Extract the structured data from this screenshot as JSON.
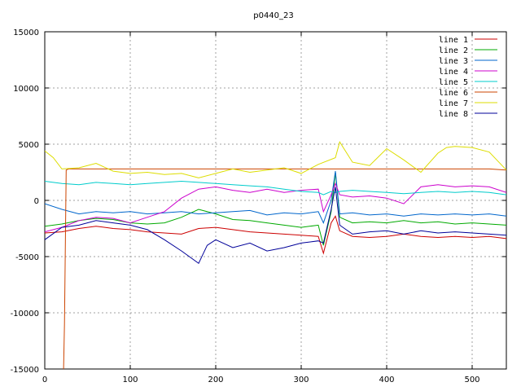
{
  "chart_data": {
    "type": "line",
    "title": "p0440_23",
    "xlabel": "",
    "ylabel": "",
    "xlim": [
      0,
      540
    ],
    "ylim": [
      -15000,
      15000
    ],
    "x_ticks": [
      0,
      100,
      200,
      300,
      400,
      500
    ],
    "y_ticks": [
      -15000,
      -10000,
      -5000,
      0,
      5000,
      10000,
      15000
    ],
    "grid": true,
    "legend_position": "top-right",
    "series": [
      {
        "name": "line 1",
        "color": "#cc0000",
        "x": [
          0,
          20,
          40,
          60,
          80,
          100,
          120,
          140,
          160,
          180,
          200,
          220,
          240,
          260,
          280,
          300,
          320,
          326,
          335,
          340,
          345,
          360,
          380,
          400,
          420,
          440,
          460,
          480,
          500,
          520,
          540
        ],
        "y": [
          -2900,
          -2800,
          -2500,
          -2300,
          -2500,
          -2600,
          -2800,
          -2900,
          -3000,
          -2500,
          -2400,
          -2600,
          -2800,
          -2900,
          -3000,
          -3100,
          -3200,
          -4700,
          -2000,
          -1400,
          -2700,
          -3200,
          -3300,
          -3200,
          -3000,
          -3200,
          -3300,
          -3200,
          -3300,
          -3200,
          -3400
        ]
      },
      {
        "name": "line 2",
        "color": "#00aa00",
        "x": [
          0,
          20,
          40,
          60,
          80,
          100,
          120,
          140,
          160,
          180,
          200,
          220,
          240,
          260,
          280,
          300,
          320,
          326,
          335,
          340,
          345,
          360,
          380,
          400,
          420,
          440,
          460,
          480,
          500,
          520,
          540
        ],
        "y": [
          -2300,
          -2100,
          -1800,
          -1600,
          -1700,
          -2000,
          -2100,
          -2000,
          -1500,
          -800,
          -1200,
          -1700,
          -1800,
          -2000,
          -2200,
          -2400,
          -2200,
          -4000,
          -1000,
          2500,
          -1500,
          -2000,
          -1900,
          -2000,
          -1800,
          -2000,
          -1900,
          -2100,
          -2000,
          -2100,
          -2200
        ]
      },
      {
        "name": "line 3",
        "color": "#0066cc",
        "x": [
          0,
          20,
          40,
          60,
          80,
          100,
          120,
          140,
          160,
          180,
          200,
          220,
          240,
          260,
          280,
          300,
          320,
          326,
          335,
          340,
          345,
          360,
          380,
          400,
          420,
          440,
          460,
          480,
          500,
          520,
          540
        ],
        "y": [
          -300,
          -800,
          -1200,
          -1000,
          -1100,
          -1000,
          -1200,
          -1100,
          -1000,
          -1200,
          -1100,
          -1000,
          -900,
          -1300,
          -1100,
          -1200,
          -1000,
          -2000,
          0,
          2600,
          -1200,
          -1100,
          -1300,
          -1200,
          -1400,
          -1200,
          -1300,
          -1200,
          -1300,
          -1200,
          -1400
        ]
      },
      {
        "name": "line 4",
        "color": "#cc00cc",
        "x": [
          0,
          20,
          40,
          60,
          80,
          100,
          120,
          140,
          160,
          180,
          200,
          220,
          240,
          260,
          280,
          300,
          320,
          326,
          335,
          340,
          345,
          360,
          380,
          400,
          420,
          440,
          460,
          480,
          500,
          520,
          540
        ],
        "y": [
          -2800,
          -2400,
          -1800,
          -1500,
          -1600,
          -2000,
          -1500,
          -1000,
          200,
          1000,
          1200,
          900,
          700,
          1000,
          700,
          900,
          1000,
          -1000,
          500,
          1500,
          500,
          300,
          400,
          200,
          -300,
          1200,
          1400,
          1200,
          1300,
          1200,
          700
        ]
      },
      {
        "name": "line 5",
        "color": "#00cccc",
        "x": [
          0,
          20,
          40,
          60,
          80,
          100,
          120,
          140,
          160,
          180,
          200,
          220,
          240,
          260,
          280,
          300,
          320,
          326,
          335,
          340,
          345,
          360,
          380,
          400,
          420,
          440,
          460,
          480,
          500,
          520,
          540
        ],
        "y": [
          1700,
          1500,
          1400,
          1600,
          1500,
          1400,
          1500,
          1600,
          1700,
          1600,
          1500,
          1400,
          1300,
          1200,
          1000,
          800,
          700,
          500,
          800,
          700,
          800,
          900,
          800,
          700,
          600,
          700,
          800,
          700,
          800,
          700,
          500
        ]
      },
      {
        "name": "line 6",
        "color": "#cc4400",
        "x": [
          22,
          23,
          25,
          28,
          40,
          60,
          80,
          100,
          120,
          140,
          160,
          180,
          200,
          220,
          240,
          260,
          280,
          300,
          320,
          340,
          360,
          380,
          400,
          420,
          440,
          460,
          480,
          500,
          520,
          540
        ],
        "y": [
          -15000,
          -11000,
          2700,
          2800,
          2800,
          2800,
          2800,
          2800,
          2800,
          2800,
          2800,
          2800,
          2800,
          2800,
          2800,
          2800,
          2800,
          2800,
          2800,
          2800,
          2800,
          2800,
          2800,
          2800,
          2800,
          2800,
          2800,
          2800,
          2800,
          2700
        ]
      },
      {
        "name": "line 7",
        "color": "#dddd00",
        "x": [
          0,
          10,
          20,
          40,
          60,
          80,
          100,
          120,
          140,
          160,
          180,
          200,
          220,
          240,
          260,
          280,
          300,
          320,
          340,
          345,
          360,
          380,
          400,
          420,
          440,
          460,
          470,
          480,
          500,
          520,
          540
        ],
        "y": [
          4400,
          3800,
          2800,
          2900,
          3300,
          2600,
          2400,
          2500,
          2300,
          2400,
          2000,
          2400,
          2800,
          2500,
          2700,
          2900,
          2400,
          3200,
          3800,
          5200,
          3400,
          3100,
          4600,
          3600,
          2500,
          4200,
          4700,
          4800,
          4700,
          4300,
          2700
        ]
      },
      {
        "name": "line 8",
        "color": "#000099",
        "x": [
          0,
          20,
          40,
          60,
          80,
          100,
          120,
          140,
          160,
          180,
          190,
          200,
          220,
          240,
          260,
          280,
          300,
          320,
          326,
          335,
          340,
          345,
          360,
          380,
          400,
          420,
          440,
          460,
          480,
          500,
          520,
          540
        ],
        "y": [
          -3500,
          -2400,
          -2200,
          -1800,
          -2000,
          -2200,
          -2600,
          -3500,
          -4500,
          -5600,
          -4000,
          -3500,
          -4200,
          -3800,
          -4500,
          -4200,
          -3800,
          -3600,
          -3800,
          -800,
          1200,
          -2200,
          -3000,
          -2800,
          -2700,
          -3000,
          -2700,
          -2900,
          -2800,
          -2900,
          -3000,
          -3100
        ]
      }
    ]
  }
}
